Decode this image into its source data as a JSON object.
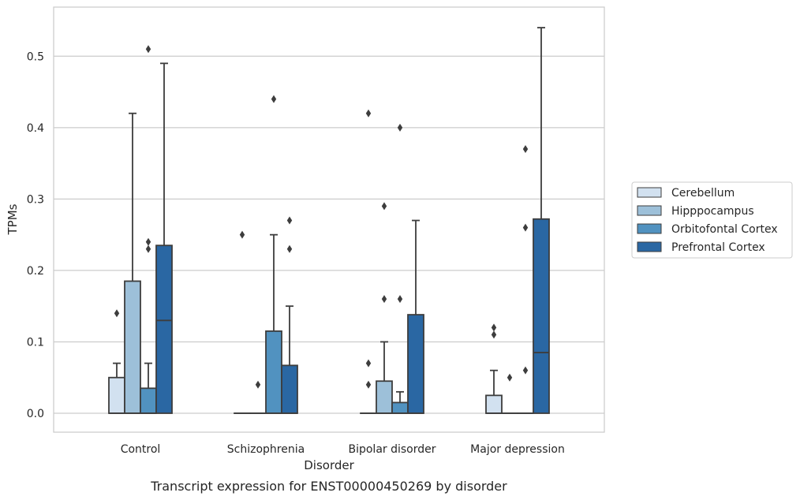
{
  "chart_data": {
    "type": "box",
    "xlabel": "Disorder",
    "ylabel": "TPMs",
    "caption": "Transcript expression for ENST00000450269 by disorder",
    "ylim": [
      -0.027,
      0.57
    ],
    "yticks": [
      "0.0",
      "0.1",
      "0.2",
      "0.3",
      "0.4",
      "0.5"
    ],
    "grid": "horizontal",
    "legend_position": "right-outside",
    "categories": [
      "Control",
      "Schizophrenia",
      "Bipolar disorder",
      "Major depression"
    ],
    "series": [
      {
        "name": "Cerebellum",
        "color": "#d2e1f0",
        "boxes": [
          {
            "q1": 0,
            "median": 0,
            "q3": 0.05,
            "whisker_low": 0,
            "whisker_high": 0.07,
            "outliers": [
              0.14
            ]
          },
          {
            "q1": 0,
            "median": 0,
            "q3": 0,
            "whisker_low": 0,
            "whisker_high": 0,
            "outliers": [
              0.25
            ]
          },
          {
            "q1": 0,
            "median": 0,
            "q3": 0,
            "whisker_low": 0,
            "whisker_high": 0,
            "outliers": [
              0.04,
              0.07,
              0.42
            ]
          },
          {
            "q1": 0,
            "median": 0,
            "q3": 0.025,
            "whisker_low": 0,
            "whisker_high": 0.06,
            "outliers": [
              0.11,
              0.12
            ]
          }
        ]
      },
      {
        "name": "Hipppocampus",
        "color": "#9dc0d9",
        "boxes": [
          {
            "q1": 0,
            "median": 0,
            "q3": 0.185,
            "whisker_low": 0,
            "whisker_high": 0.42,
            "outliers": []
          },
          {
            "q1": 0,
            "median": 0,
            "q3": 0,
            "whisker_low": 0,
            "whisker_high": 0,
            "outliers": [
              0.04
            ]
          },
          {
            "q1": 0,
            "median": 0,
            "q3": 0.045,
            "whisker_low": 0,
            "whisker_high": 0.1,
            "outliers": [
              0.16,
              0.29
            ]
          },
          {
            "q1": 0,
            "median": 0,
            "q3": 0,
            "whisker_low": 0,
            "whisker_high": 0,
            "outliers": [
              0.05
            ]
          }
        ]
      },
      {
        "name": "Orbitofontal Cortex",
        "color": "#5192c0",
        "boxes": [
          {
            "q1": 0,
            "median": 0,
            "q3": 0.035,
            "whisker_low": 0,
            "whisker_high": 0.07,
            "outliers": [
              0.23,
              0.24,
              0.51
            ]
          },
          {
            "q1": 0,
            "median": 0,
            "q3": 0.115,
            "whisker_low": 0,
            "whisker_high": 0.25,
            "outliers": [
              0.44
            ]
          },
          {
            "q1": 0,
            "median": 0,
            "q3": 0.015,
            "whisker_low": 0,
            "whisker_high": 0.03,
            "outliers": [
              0.16,
              0.4
            ]
          },
          {
            "q1": 0,
            "median": 0,
            "q3": 0,
            "whisker_low": 0,
            "whisker_high": 0,
            "outliers": [
              0.06,
              0.26,
              0.37
            ]
          }
        ]
      },
      {
        "name": "Prefrontal Cortex",
        "color": "#2a67a3",
        "boxes": [
          {
            "q1": 0,
            "median": 0.13,
            "q3": 0.235,
            "whisker_low": 0,
            "whisker_high": 0.49,
            "outliers": []
          },
          {
            "q1": 0,
            "median": 0,
            "q3": 0.067,
            "whisker_low": 0,
            "whisker_high": 0.15,
            "outliers": [
              0.23,
              0.27
            ]
          },
          {
            "q1": 0,
            "median": 0,
            "q3": 0.138,
            "whisker_low": 0,
            "whisker_high": 0.27,
            "outliers": []
          },
          {
            "q1": 0,
            "median": 0.085,
            "q3": 0.272,
            "whisker_low": 0,
            "whisker_high": 0.54,
            "outliers": []
          }
        ]
      }
    ]
  }
}
